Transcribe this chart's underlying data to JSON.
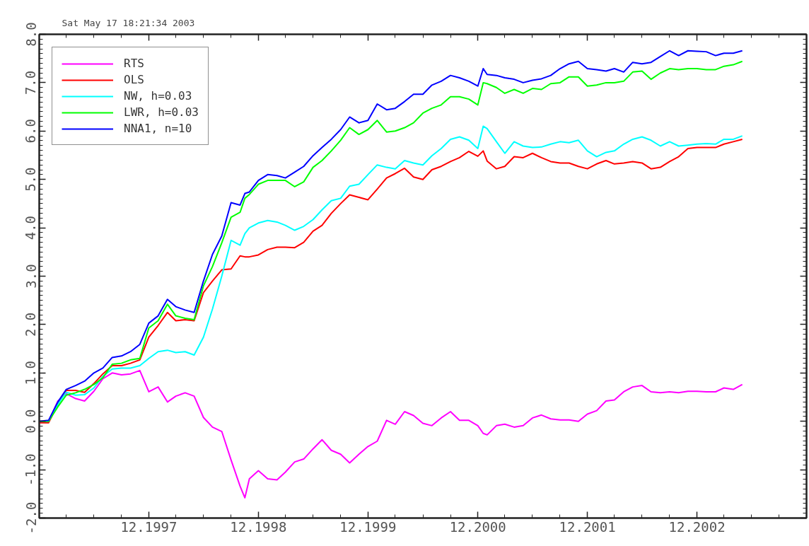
{
  "chart_data": {
    "type": "line",
    "title": "Sat May 17 18:21:34 2003",
    "legend": "top left",
    "x": [
      "1996-12",
      "1997-01",
      "1997-02",
      "1997-03",
      "1997-04",
      "1997-05",
      "1997-06",
      "1997-07",
      "1997-08",
      "1997-09",
      "1997-10",
      "1997-11",
      "1997-12",
      "1998-01",
      "1998-02",
      "1998-03",
      "1998-04",
      "1998-05",
      "1998-06",
      "1998-07",
      "1998-08",
      "1998-09",
      "1998-10",
      "1998-10-17",
      "1998-11",
      "1998-12",
      "1999-01",
      "1999-02",
      "1999-03",
      "1999-04",
      "1999-05",
      "1999-06",
      "1999-07",
      "1999-08",
      "1999-09",
      "1999-10",
      "1999-11",
      "1999-12",
      "2000-01",
      "2000-02",
      "2000-03",
      "2000-04",
      "2000-05",
      "2000-06",
      "2000-07",
      "2000-08",
      "2000-09",
      "2000-10",
      "2000-11",
      "2000-12",
      "2000-12-19",
      "2001-01",
      "2001-02",
      "2001-03",
      "2001-04",
      "2001-05",
      "2001-06",
      "2001-07",
      "2001-08",
      "2001-09",
      "2001-10",
      "2001-11",
      "2001-12",
      "2002-01",
      "2002-02",
      "2002-03",
      "2002-04",
      "2002-05",
      "2002-06",
      "2002-07",
      "2002-08",
      "2002-09",
      "2002-10",
      "2002-11",
      "2002-12",
      "2003-01",
      "2003-02",
      "2003-03",
      "2003-04",
      "2003-05"
    ],
    "xlim": [
      "1996-12",
      "2003-12"
    ],
    "xticks": [
      {
        "value": "1997-03",
        "label": null
      },
      {
        "value": "1997-06",
        "label": null
      },
      {
        "value": "1997-09",
        "label": null
      },
      {
        "value": "1997-12",
        "label": "12.1997"
      },
      {
        "value": "1998-03",
        "label": null
      },
      {
        "value": "1998-06",
        "label": null
      },
      {
        "value": "1998-09",
        "label": null
      },
      {
        "value": "1998-12",
        "label": "12.1998"
      },
      {
        "value": "1999-03",
        "label": null
      },
      {
        "value": "1999-06",
        "label": null
      },
      {
        "value": "1999-09",
        "label": null
      },
      {
        "value": "1999-12",
        "label": "12.1999"
      },
      {
        "value": "2000-03",
        "label": null
      },
      {
        "value": "2000-06",
        "label": null
      },
      {
        "value": "2000-09",
        "label": null
      },
      {
        "value": "2000-12",
        "label": "12.2000"
      },
      {
        "value": "2001-03",
        "label": null
      },
      {
        "value": "2001-06",
        "label": null
      },
      {
        "value": "2001-09",
        "label": null
      },
      {
        "value": "2001-12",
        "label": "12.2001"
      },
      {
        "value": "2002-03",
        "label": null
      },
      {
        "value": "2002-06",
        "label": null
      },
      {
        "value": "2002-09",
        "label": null
      },
      {
        "value": "2002-12",
        "label": "12.2002"
      },
      {
        "value": "2003-03",
        "label": null
      },
      {
        "value": "2003-06",
        "label": null
      },
      {
        "value": "2003-09",
        "label": null
      }
    ],
    "ylim": [
      -2,
      8
    ],
    "yticks": [
      {
        "value": -2,
        "label": "-2.0"
      },
      {
        "value": -1.9,
        "label": null
      },
      {
        "value": -1.8,
        "label": null
      },
      {
        "value": -1.7,
        "label": null
      },
      {
        "value": -1.6,
        "label": null
      },
      {
        "value": -1.5,
        "label": null
      },
      {
        "value": -1.4,
        "label": null
      },
      {
        "value": -1.3,
        "label": null
      },
      {
        "value": -1.2,
        "label": null
      },
      {
        "value": -1.1,
        "label": null
      },
      {
        "value": -1,
        "label": "-1.0"
      },
      {
        "value": -0.9,
        "label": null
      },
      {
        "value": -0.8,
        "label": null
      },
      {
        "value": -0.7,
        "label": null
      },
      {
        "value": -0.6,
        "label": null
      },
      {
        "value": -0.5,
        "label": null
      },
      {
        "value": -0.4,
        "label": null
      },
      {
        "value": -0.3,
        "label": null
      },
      {
        "value": -0.2,
        "label": null
      },
      {
        "value": -0.1,
        "label": null
      },
      {
        "value": 0,
        "label": "0.0"
      },
      {
        "value": 0.1,
        "label": null
      },
      {
        "value": 0.2,
        "label": null
      },
      {
        "value": 0.3,
        "label": null
      },
      {
        "value": 0.4,
        "label": null
      },
      {
        "value": 0.5,
        "label": null
      },
      {
        "value": 0.6,
        "label": null
      },
      {
        "value": 0.7,
        "label": null
      },
      {
        "value": 0.8,
        "label": null
      },
      {
        "value": 0.9,
        "label": null
      },
      {
        "value": 1,
        "label": "1.0"
      },
      {
        "value": 1.1,
        "label": null
      },
      {
        "value": 1.2,
        "label": null
      },
      {
        "value": 1.3,
        "label": null
      },
      {
        "value": 1.4,
        "label": null
      },
      {
        "value": 1.5,
        "label": null
      },
      {
        "value": 1.6,
        "label": null
      },
      {
        "value": 1.7,
        "label": null
      },
      {
        "value": 1.8,
        "label": null
      },
      {
        "value": 1.9,
        "label": null
      },
      {
        "value": 2,
        "label": "2.0"
      },
      {
        "value": 2.1,
        "label": null
      },
      {
        "value": 2.2,
        "label": null
      },
      {
        "value": 2.3,
        "label": null
      },
      {
        "value": 2.4,
        "label": null
      },
      {
        "value": 2.5,
        "label": null
      },
      {
        "value": 2.6,
        "label": null
      },
      {
        "value": 2.7,
        "label": null
      },
      {
        "value": 2.8,
        "label": null
      },
      {
        "value": 2.9,
        "label": null
      },
      {
        "value": 3,
        "label": "3.0"
      },
      {
        "value": 3.1,
        "label": null
      },
      {
        "value": 3.2,
        "label": null
      },
      {
        "value": 3.3,
        "label": null
      },
      {
        "value": 3.4,
        "label": null
      },
      {
        "value": 3.5,
        "label": null
      },
      {
        "value": 3.6,
        "label": null
      },
      {
        "value": 3.7,
        "label": null
      },
      {
        "value": 3.8,
        "label": null
      },
      {
        "value": 3.9,
        "label": null
      },
      {
        "value": 4,
        "label": "4.0"
      },
      {
        "value": 4.1,
        "label": null
      },
      {
        "value": 4.2,
        "label": null
      },
      {
        "value": 4.3,
        "label": null
      },
      {
        "value": 4.4,
        "label": null
      },
      {
        "value": 4.5,
        "label": null
      },
      {
        "value": 4.6,
        "label": null
      },
      {
        "value": 4.7,
        "label": null
      },
      {
        "value": 4.8,
        "label": null
      },
      {
        "value": 4.9,
        "label": null
      },
      {
        "value": 5,
        "label": "5.0"
      },
      {
        "value": 5.1,
        "label": null
      },
      {
        "value": 5.2,
        "label": null
      },
      {
        "value": 5.3,
        "label": null
      },
      {
        "value": 5.4,
        "label": null
      },
      {
        "value": 5.5,
        "label": null
      },
      {
        "value": 5.6,
        "label": null
      },
      {
        "value": 5.7,
        "label": null
      },
      {
        "value": 5.8,
        "label": null
      },
      {
        "value": 5.9,
        "label": null
      },
      {
        "value": 6,
        "label": "6.0"
      },
      {
        "value": 6.1,
        "label": null
      },
      {
        "value": 6.2,
        "label": null
      },
      {
        "value": 6.3,
        "label": null
      },
      {
        "value": 6.4,
        "label": null
      },
      {
        "value": 6.5,
        "label": null
      },
      {
        "value": 6.6,
        "label": null
      },
      {
        "value": 6.7,
        "label": null
      },
      {
        "value": 6.8,
        "label": null
      },
      {
        "value": 6.9,
        "label": null
      },
      {
        "value": 7,
        "label": "7.0"
      },
      {
        "value": 7.1,
        "label": null
      },
      {
        "value": 7.2,
        "label": null
      },
      {
        "value": 7.3,
        "label": null
      },
      {
        "value": 7.4,
        "label": null
      },
      {
        "value": 7.5,
        "label": null
      },
      {
        "value": 7.6,
        "label": null
      },
      {
        "value": 7.7,
        "label": null
      },
      {
        "value": 7.8,
        "label": null
      },
      {
        "value": 7.9,
        "label": null
      },
      {
        "value": 8,
        "label": "8.0"
      }
    ],
    "series": [
      {
        "name": "RTS",
        "color": "#ff00ff",
        "values": [
          0.0,
          0.0,
          0.42,
          0.57,
          0.47,
          0.42,
          0.62,
          0.88,
          1.0,
          0.96,
          0.98,
          1.05,
          0.61,
          0.71,
          0.4,
          0.52,
          0.59,
          0.52,
          0.08,
          -0.12,
          -0.21,
          -0.8,
          -1.34,
          -1.58,
          -1.19,
          -1.02,
          -1.19,
          -1.21,
          -1.05,
          -0.84,
          -0.78,
          -0.57,
          -0.38,
          -0.6,
          -0.68,
          -0.86,
          -0.68,
          -0.52,
          -0.41,
          0.02,
          -0.06,
          0.2,
          0.12,
          -0.04,
          -0.09,
          0.07,
          0.2,
          0.02,
          0.02,
          -0.09,
          -0.25,
          -0.28,
          -0.09,
          -0.06,
          -0.12,
          -0.09,
          0.07,
          0.13,
          0.05,
          0.03,
          0.03,
          0.0,
          0.15,
          0.22,
          0.42,
          0.44,
          0.61,
          0.71,
          0.74,
          0.61,
          0.59,
          0.61,
          0.59,
          0.62,
          0.62,
          0.61,
          0.61,
          0.69,
          0.66,
          0.76
        ]
      },
      {
        "name": "OLS",
        "color": "#ff0000",
        "values": [
          -0.03,
          -0.03,
          0.35,
          0.64,
          0.64,
          0.6,
          0.78,
          0.98,
          1.15,
          1.15,
          1.2,
          1.27,
          1.74,
          1.98,
          2.25,
          2.08,
          2.1,
          2.08,
          2.66,
          2.9,
          3.13,
          3.15,
          3.42,
          3.4,
          3.4,
          3.44,
          3.55,
          3.6,
          3.6,
          3.59,
          3.7,
          3.93,
          4.05,
          4.3,
          4.5,
          4.68,
          4.63,
          4.58,
          4.8,
          5.03,
          5.12,
          5.23,
          5.05,
          5.0,
          5.2,
          5.27,
          5.37,
          5.45,
          5.58,
          5.48,
          5.59,
          5.38,
          5.22,
          5.27,
          5.47,
          5.45,
          5.54,
          5.45,
          5.37,
          5.34,
          5.34,
          5.27,
          5.22,
          5.32,
          5.39,
          5.32,
          5.34,
          5.37,
          5.34,
          5.22,
          5.25,
          5.37,
          5.47,
          5.64,
          5.66,
          5.66,
          5.66,
          5.73,
          5.78,
          5.83
        ]
      },
      {
        "name": "NW, h=0.03",
        "color": "#00ffff",
        "values": [
          0.0,
          0.0,
          0.35,
          0.6,
          0.54,
          0.55,
          0.69,
          0.93,
          1.08,
          1.1,
          1.1,
          1.15,
          1.3,
          1.44,
          1.47,
          1.42,
          1.44,
          1.37,
          1.74,
          2.32,
          3.0,
          3.74,
          3.64,
          3.88,
          4.0,
          4.1,
          4.15,
          4.12,
          4.05,
          3.95,
          4.03,
          4.17,
          4.37,
          4.56,
          4.61,
          4.86,
          4.9,
          5.1,
          5.3,
          5.25,
          5.22,
          5.39,
          5.34,
          5.3,
          5.49,
          5.64,
          5.83,
          5.88,
          5.81,
          5.64,
          6.1,
          6.05,
          5.78,
          5.54,
          5.78,
          5.69,
          5.66,
          5.67,
          5.73,
          5.78,
          5.76,
          5.81,
          5.59,
          5.47,
          5.56,
          5.59,
          5.73,
          5.83,
          5.88,
          5.81,
          5.69,
          5.78,
          5.69,
          5.71,
          5.73,
          5.74,
          5.73,
          5.83,
          5.83,
          5.9
        ]
      },
      {
        "name": "LWR, h=0.03",
        "color": "#00ff00",
        "values": [
          0.0,
          0.0,
          0.3,
          0.54,
          0.59,
          0.66,
          0.76,
          0.9,
          1.18,
          1.2,
          1.27,
          1.3,
          1.93,
          2.08,
          2.42,
          2.18,
          2.13,
          2.1,
          2.8,
          3.2,
          3.69,
          4.22,
          4.32,
          4.61,
          4.69,
          4.9,
          4.98,
          4.98,
          4.98,
          4.85,
          4.95,
          5.25,
          5.39,
          5.59,
          5.81,
          6.07,
          5.93,
          6.03,
          6.22,
          5.98,
          6.0,
          6.07,
          6.17,
          6.37,
          6.47,
          6.54,
          6.71,
          6.71,
          6.66,
          6.54,
          7.0,
          6.98,
          6.9,
          6.78,
          6.86,
          6.78,
          6.88,
          6.86,
          6.98,
          7.0,
          7.12,
          7.12,
          6.93,
          6.95,
          7.0,
          7.0,
          7.03,
          7.22,
          7.24,
          7.07,
          7.2,
          7.29,
          7.27,
          7.29,
          7.29,
          7.27,
          7.27,
          7.34,
          7.37,
          7.44
        ]
      },
      {
        "name": "NNA1, n=10",
        "color": "#0000ff",
        "values": [
          0.0,
          0.02,
          0.4,
          0.66,
          0.74,
          0.83,
          1.0,
          1.1,
          1.32,
          1.35,
          1.44,
          1.59,
          2.03,
          2.18,
          2.52,
          2.37,
          2.3,
          2.25,
          2.9,
          3.45,
          3.83,
          4.52,
          4.47,
          4.71,
          4.74,
          4.98,
          5.1,
          5.08,
          5.03,
          5.15,
          5.27,
          5.49,
          5.66,
          5.83,
          6.03,
          6.29,
          6.17,
          6.22,
          6.56,
          6.44,
          6.47,
          6.61,
          6.76,
          6.76,
          6.95,
          7.03,
          7.15,
          7.1,
          7.03,
          6.93,
          7.29,
          7.17,
          7.15,
          7.1,
          7.07,
          7.0,
          7.05,
          7.08,
          7.15,
          7.29,
          7.39,
          7.44,
          7.29,
          7.27,
          7.24,
          7.29,
          7.22,
          7.42,
          7.39,
          7.42,
          7.54,
          7.66,
          7.56,
          7.66,
          7.65,
          7.64,
          7.56,
          7.61,
          7.61,
          7.66
        ]
      }
    ]
  }
}
